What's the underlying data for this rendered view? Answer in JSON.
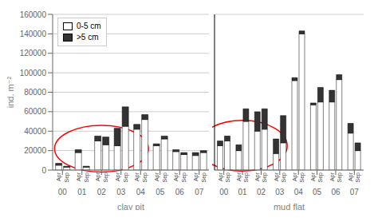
{
  "chart_data": {
    "type": "bar",
    "stacked": true,
    "ylabel": "ind. m⁻²",
    "ylim": [
      0,
      160000
    ],
    "yticks": [
      0,
      20000,
      40000,
      60000,
      80000,
      100000,
      120000,
      140000,
      160000
    ],
    "grid": true,
    "legend": "upper left",
    "edge_color": "#000000",
    "periods": [
      "Apr",
      "Sep"
    ],
    "sections": [
      {
        "name": "clay pit",
        "categories": [
          "00",
          "01",
          "02",
          "03",
          "04",
          "05",
          "06",
          "07"
        ],
        "series": [
          {
            "name": "0-5 cm",
            "color": "#ffffff",
            "values": [
              [
                5000,
                18000,
                30000,
                25000,
                42000,
                25000,
                19000,
                15000
              ],
              [
                3000,
                3000,
                26000,
                45000,
                52000,
                32000,
                16000,
                18000
              ]
            ]
          },
          {
            "name": ">5 cm",
            "color": "#333333",
            "values": [
              [
                2000,
                3000,
                5000,
                18000,
                5000,
                2000,
                2000,
                3000
              ],
              [
                1000,
                1000,
                8000,
                20000,
                5000,
                3000,
                2000,
                2000
              ]
            ]
          }
        ],
        "annotations": [
          {
            "shape": "ellipse",
            "x_range": [
              "01",
              "03"
            ],
            "y_range": [
              -2000,
              46000
            ],
            "color": "red"
          }
        ]
      },
      {
        "name": "mud flat",
        "categories": [
          "00",
          "01",
          "02",
          "03",
          "04",
          "05",
          "06",
          "07"
        ],
        "series": [
          {
            "name": "0-5 cm",
            "color": "#ffffff",
            "values": [
              [
                25000,
                20000,
                40000,
                17000,
                92000,
                67000,
                70000,
                38000
              ],
              [
                30000,
                50000,
                42000,
                28000,
                140000,
                70000,
                93000,
                20000
              ]
            ]
          },
          {
            "name": ">5 cm",
            "color": "#333333",
            "values": [
              [
                5000,
                6000,
                20000,
                15000,
                3000,
                2000,
                12000,
                10000
              ],
              [
                5000,
                13000,
                21000,
                28000,
                3000,
                15000,
                5000,
                8000
              ]
            ]
          }
        ],
        "annotations": [
          {
            "shape": "ellipse",
            "x_range": [
              "00",
              "02"
            ],
            "y_range": [
              -1000,
              51000
            ],
            "color": "red"
          }
        ]
      }
    ]
  }
}
